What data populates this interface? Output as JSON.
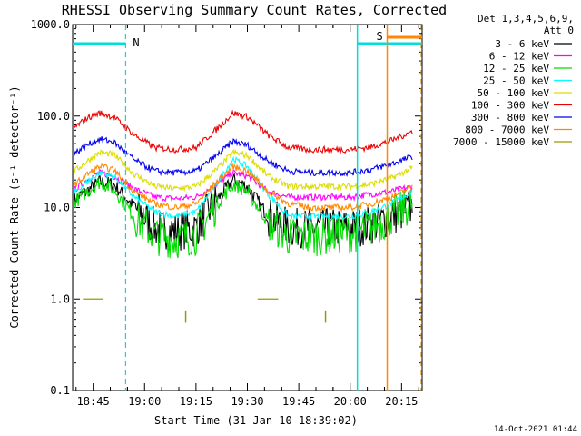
{
  "chart_data": {
    "type": "line",
    "title": "RHESSI Observing Summary Count Rates, Corrected",
    "xlabel": "Start Time (31-Jan-10 18:39:02)",
    "ylabel": "Corrected Count Rate (s⁻¹ detector⁻¹)",
    "yscale": "log",
    "ylim": [
      0.1,
      1000
    ],
    "xlim_minutes": [
      18.65,
      20.35
    ],
    "x_ticks": [
      "18:45",
      "19:00",
      "19:15",
      "19:30",
      "19:45",
      "20:00",
      "20:15"
    ],
    "y_ticks": [
      "0.1",
      "1.0",
      "10.0",
      "100.0",
      "1000.0"
    ],
    "legend_header": [
      "Det 1,3,4,5,6,9,",
      "Att 0"
    ],
    "legend_position": "right",
    "series": [
      {
        "name": "3 - 6 keV",
        "color": "#000000",
        "points": [
          [
            18.65,
            12
          ],
          [
            18.72,
            15
          ],
          [
            18.78,
            19
          ],
          [
            18.85,
            18
          ],
          [
            18.95,
            10
          ],
          [
            19.05,
            6
          ],
          [
            19.15,
            5.5
          ],
          [
            19.25,
            6
          ],
          [
            19.35,
            12
          ],
          [
            19.43,
            20
          ],
          [
            19.5,
            17
          ],
          [
            19.6,
            8
          ],
          [
            19.7,
            6
          ],
          [
            19.8,
            6
          ],
          [
            19.9,
            6
          ],
          [
            20.0,
            6
          ],
          [
            20.1,
            6.5
          ],
          [
            20.2,
            8
          ],
          [
            20.3,
            10
          ]
        ]
      },
      {
        "name": "6 - 12 keV",
        "color": "#ff00ff",
        "points": [
          [
            18.65,
            15
          ],
          [
            18.72,
            20
          ],
          [
            18.78,
            24
          ],
          [
            18.85,
            22
          ],
          [
            18.95,
            16
          ],
          [
            19.05,
            13
          ],
          [
            19.15,
            12.5
          ],
          [
            19.25,
            13
          ],
          [
            19.35,
            18
          ],
          [
            19.43,
            24
          ],
          [
            19.5,
            22
          ],
          [
            19.6,
            15
          ],
          [
            19.7,
            13
          ],
          [
            19.8,
            13
          ],
          [
            19.9,
            13
          ],
          [
            20.0,
            13
          ],
          [
            20.1,
            14
          ],
          [
            20.2,
            15
          ],
          [
            20.3,
            17
          ]
        ]
      },
      {
        "name": "12 - 25 keV",
        "color": "#00dd00",
        "points": [
          [
            18.65,
            11
          ],
          [
            18.72,
            15
          ],
          [
            18.78,
            19
          ],
          [
            18.85,
            16
          ],
          [
            18.95,
            8
          ],
          [
            19.05,
            5
          ],
          [
            19.15,
            4.5
          ],
          [
            19.25,
            5
          ],
          [
            19.35,
            11
          ],
          [
            19.43,
            18
          ],
          [
            19.5,
            15
          ],
          [
            19.6,
            7
          ],
          [
            19.7,
            4.8
          ],
          [
            19.8,
            4.8
          ],
          [
            19.9,
            5
          ],
          [
            20.0,
            5.2
          ],
          [
            20.1,
            6
          ],
          [
            20.2,
            8
          ],
          [
            20.3,
            11
          ]
        ]
      },
      {
        "name": "25 - 50 keV",
        "color": "#00ffff",
        "points": [
          [
            18.65,
            14
          ],
          [
            18.72,
            19
          ],
          [
            18.78,
            24
          ],
          [
            18.85,
            22
          ],
          [
            18.95,
            13
          ],
          [
            19.05,
            9
          ],
          [
            19.15,
            8
          ],
          [
            19.25,
            9
          ],
          [
            19.35,
            18
          ],
          [
            19.43,
            34
          ],
          [
            19.5,
            28
          ],
          [
            19.6,
            14
          ],
          [
            19.7,
            8
          ],
          [
            19.8,
            8
          ],
          [
            19.9,
            8
          ],
          [
            20.0,
            8
          ],
          [
            20.1,
            9
          ],
          [
            20.2,
            11
          ],
          [
            20.3,
            15
          ]
        ]
      },
      {
        "name": "50 - 100 keV",
        "color": "#dddd00",
        "points": [
          [
            18.65,
            24
          ],
          [
            18.72,
            32
          ],
          [
            18.78,
            40
          ],
          [
            18.85,
            38
          ],
          [
            18.95,
            23
          ],
          [
            19.05,
            17
          ],
          [
            19.15,
            16
          ],
          [
            19.25,
            17
          ],
          [
            19.35,
            26
          ],
          [
            19.43,
            40
          ],
          [
            19.5,
            37
          ],
          [
            19.6,
            22
          ],
          [
            19.7,
            17
          ],
          [
            19.8,
            17
          ],
          [
            19.9,
            17
          ],
          [
            20.0,
            17
          ],
          [
            20.1,
            18
          ],
          [
            20.2,
            21
          ],
          [
            20.3,
            27
          ]
        ]
      },
      {
        "name": "100 - 300 keV",
        "color": "#ee0000",
        "points": [
          [
            18.65,
            72
          ],
          [
            18.72,
            95
          ],
          [
            18.78,
            108
          ],
          [
            18.85,
            98
          ],
          [
            18.95,
            62
          ],
          [
            19.05,
            45
          ],
          [
            19.15,
            43
          ],
          [
            19.25,
            45
          ],
          [
            19.35,
            72
          ],
          [
            19.43,
            108
          ],
          [
            19.5,
            98
          ],
          [
            19.6,
            62
          ],
          [
            19.7,
            45
          ],
          [
            19.8,
            43
          ],
          [
            19.9,
            43
          ],
          [
            20.0,
            43
          ],
          [
            20.1,
            46
          ],
          [
            20.2,
            54
          ],
          [
            20.3,
            68
          ]
        ]
      },
      {
        "name": "300 - 800 keV",
        "color": "#0000ee",
        "points": [
          [
            18.65,
            38
          ],
          [
            18.72,
            48
          ],
          [
            18.78,
            56
          ],
          [
            18.85,
            52
          ],
          [
            18.95,
            33
          ],
          [
            19.05,
            25
          ],
          [
            19.15,
            24
          ],
          [
            19.25,
            25
          ],
          [
            19.35,
            37
          ],
          [
            19.43,
            53
          ],
          [
            19.5,
            48
          ],
          [
            19.6,
            32
          ],
          [
            19.7,
            25
          ],
          [
            19.8,
            24
          ],
          [
            19.9,
            24
          ],
          [
            20.0,
            24
          ],
          [
            20.1,
            26
          ],
          [
            20.2,
            30
          ],
          [
            20.3,
            36
          ]
        ]
      },
      {
        "name": "800 - 7000 keV",
        "color": "#ff8800",
        "points": [
          [
            18.65,
            17
          ],
          [
            18.72,
            23
          ],
          [
            18.78,
            28
          ],
          [
            18.85,
            26
          ],
          [
            18.95,
            15
          ],
          [
            19.05,
            11
          ],
          [
            19.15,
            10
          ],
          [
            19.25,
            11
          ],
          [
            19.35,
            19
          ],
          [
            19.43,
            28
          ],
          [
            19.5,
            25
          ],
          [
            19.6,
            15
          ],
          [
            19.7,
            11
          ],
          [
            19.8,
            10
          ],
          [
            19.9,
            10
          ],
          [
            20.0,
            10
          ],
          [
            20.1,
            11
          ],
          [
            20.2,
            13
          ],
          [
            20.3,
            17
          ]
        ]
      },
      {
        "name": "7000 - 15000 keV",
        "color": "#999900",
        "points": [
          [
            18.7,
            1.0
          ],
          [
            18.8,
            1.0
          ],
          [
            19.55,
            1.0
          ],
          [
            19.65,
            1.0
          ]
        ]
      }
    ],
    "annotations": [
      {
        "text": "N",
        "color": "#00dddd"
      },
      {
        "text": "S",
        "color": "#ff8800"
      }
    ],
    "footer": "14-Oct-2021 01:44"
  }
}
